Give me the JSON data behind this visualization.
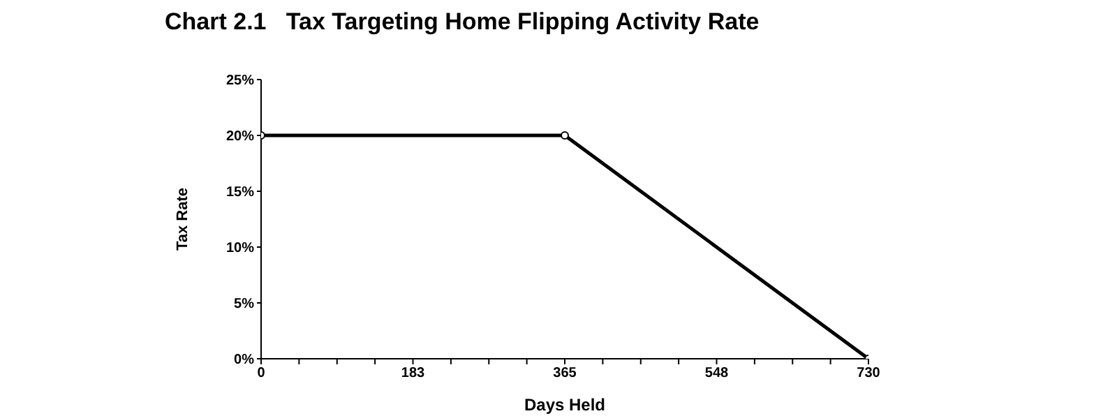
{
  "chart_data": {
    "type": "line",
    "title": "Chart 2.1   Tax Targeting Home Flipping Activity Rate",
    "xlabel": "Days Held",
    "ylabel": "Tax Rate",
    "x": [
      0,
      365,
      730
    ],
    "series": [
      {
        "color": "#000000",
        "values": [
          20,
          20,
          0
        ]
      }
    ],
    "xlim": [
      0,
      730
    ],
    "xticks": [
      0,
      {
        "value": 45.625,
        "label": null
      },
      {
        "value": 91.25,
        "label": null
      },
      {
        "value": 136.875,
        "label": null
      },
      {
        "value": 182.5,
        "label": "183"
      },
      {
        "value": 228.125,
        "label": null
      },
      {
        "value": 273.75,
        "label": null
      },
      {
        "value": 319.375,
        "label": null
      },
      365,
      {
        "value": 410.625,
        "label": null
      },
      {
        "value": 456.25,
        "label": null
      },
      {
        "value": 501.875,
        "label": null
      },
      {
        "value": 547.5,
        "label": "548"
      },
      {
        "value": 593.125,
        "label": null
      },
      {
        "value": 638.75,
        "label": null
      },
      {
        "value": 684.375,
        "label": null
      },
      730
    ],
    "ylim": [
      0,
      25
    ],
    "yticks": [
      {
        "value": 0,
        "label": "0%"
      },
      {
        "value": 5,
        "label": "5%"
      },
      {
        "value": 10,
        "label": "10%"
      },
      {
        "value": 15,
        "label": "15%"
      },
      {
        "value": 20,
        "label": "20%"
      },
      {
        "value": 25,
        "label": "25%"
      }
    ],
    "marker": "circle",
    "line_style": "solid",
    "grid": false
  }
}
